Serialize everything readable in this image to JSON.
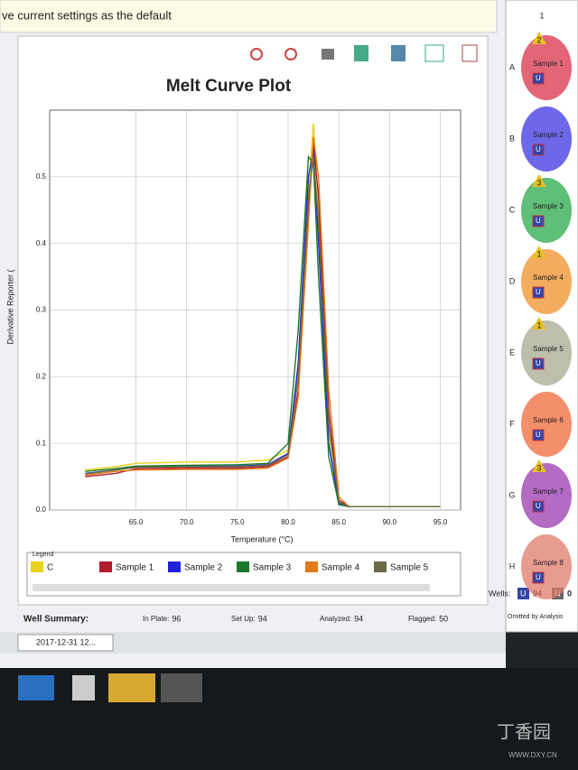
{
  "banner": "ve current settings as the default",
  "chart_data": {
    "type": "line",
    "title": "Melt Curve Plot",
    "xlabel": "Temperature (°C)",
    "ylabel": "Derivative Reporter (",
    "x": [
      60,
      63,
      65,
      70,
      75,
      78,
      80,
      81,
      82,
      82.5,
      83,
      84,
      85,
      86,
      90,
      95
    ],
    "series": [
      {
        "name": "C",
        "color": "#e8d21a",
        "values": [
          0.06,
          0.065,
          0.07,
          0.072,
          0.072,
          0.075,
          0.09,
          0.2,
          0.48,
          0.58,
          0.45,
          0.12,
          0.01,
          0.005,
          0.005,
          0.005
        ]
      },
      {
        "name": "Sample 1",
        "color": "#b01c2e",
        "values": [
          0.05,
          0.055,
          0.062,
          0.063,
          0.063,
          0.065,
          0.08,
          0.18,
          0.45,
          0.55,
          0.47,
          0.15,
          0.015,
          0.005,
          0.005,
          0.005
        ]
      },
      {
        "name": "Sample 2",
        "color": "#2222dd",
        "values": [
          0.055,
          0.06,
          0.065,
          0.066,
          0.066,
          0.068,
          0.085,
          0.22,
          0.5,
          0.54,
          0.4,
          0.1,
          0.01,
          0.005,
          0.005,
          0.005
        ]
      },
      {
        "name": "Sample 3",
        "color": "#1a7a2a",
        "values": [
          0.058,
          0.062,
          0.066,
          0.067,
          0.068,
          0.07,
          0.1,
          0.27,
          0.53,
          0.52,
          0.35,
          0.08,
          0.008,
          0.005,
          0.005,
          0.005
        ]
      },
      {
        "name": "Sample 4",
        "color": "#e07a1a",
        "values": [
          0.052,
          0.058,
          0.06,
          0.061,
          0.061,
          0.063,
          0.078,
          0.17,
          0.43,
          0.56,
          0.5,
          0.18,
          0.02,
          0.005,
          0.005,
          0.005
        ]
      },
      {
        "name": "Sample 5",
        "color": "#6b6b45",
        "values": [
          0.054,
          0.06,
          0.064,
          0.065,
          0.065,
          0.067,
          0.083,
          0.2,
          0.47,
          0.53,
          0.43,
          0.13,
          0.012,
          0.005,
          0.005,
          0.005
        ]
      }
    ],
    "xlim": [
      56.5,
      97
    ],
    "ylim": [
      0,
      0.6
    ],
    "xticks": [
      {
        "value": 65,
        "label": "65.0"
      },
      {
        "value": 70,
        "label": "70.0"
      },
      {
        "value": 75,
        "label": "75.0"
      },
      {
        "value": 80,
        "label": "80.0"
      },
      {
        "value": 85,
        "label": "85.0"
      },
      {
        "value": 90,
        "label": "90.0"
      },
      {
        "value": 95,
        "label": "95.0"
      }
    ],
    "yticks": [
      {
        "value": 0,
        "label": "0.0"
      },
      0.1,
      0.2,
      0.3,
      0.4,
      0.5
    ],
    "grid": true,
    "legend_title": "Legend"
  },
  "well_summary": {
    "title": "Well Summary:",
    "items": [
      {
        "label": "In Plate:",
        "value": 96
      },
      {
        "label": "Set Up:",
        "value": 94
      },
      {
        "label": "Analyzed:",
        "value": 94
      },
      {
        "label": "Flagged:",
        "value": 50
      }
    ]
  },
  "omitted": "Omitted by Analysis",
  "plate": {
    "column": "1",
    "rows": [
      {
        "row": "A",
        "flag": "2",
        "sample": "Sample 1",
        "tag": "U",
        "color": "#d9334a"
      },
      {
        "row": "B",
        "sample": "Sample 2",
        "tag": "U",
        "color": "#3b35e0"
      },
      {
        "row": "C",
        "flag": "3",
        "sample": "Sample 3",
        "tag": "U",
        "color": "#2aa84a"
      },
      {
        "row": "D",
        "flag": "1",
        "sample": "Sample 4",
        "tag": "U",
        "color": "#f0902a"
      },
      {
        "row": "E",
        "flag": "1",
        "sample": "Sample 5",
        "tag": "U",
        "color": "#a8a890"
      },
      {
        "row": "F",
        "sample": "Sample 6",
        "tag": "U",
        "color": "#ef6a3a"
      },
      {
        "row": "G",
        "flag": "3",
        "sample": "Sample 7",
        "tag": "U",
        "color": "#9a3ab0"
      },
      {
        "row": "H",
        "sample": "Sample 8",
        "tag": "U",
        "color": "#e07a6a"
      }
    ]
  },
  "wells": {
    "label": "Wells:",
    "unknown_tag": "U",
    "unknown": 94,
    "ntc_tag": "N",
    "ntc": 0
  },
  "taskbar": "2017-12-31 12...",
  "watermark": {
    "name": "丁香园",
    "url": "WWW.DXY.CN"
  }
}
